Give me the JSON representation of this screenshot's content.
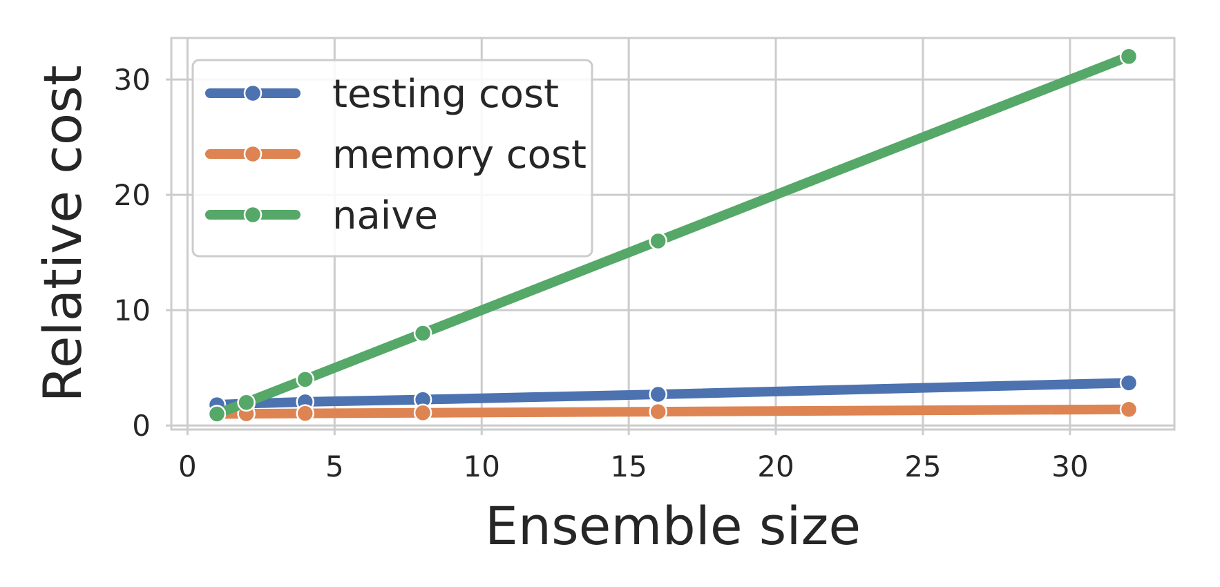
{
  "chart_data": {
    "type": "line",
    "xlabel": "Ensemble size",
    "ylabel": "Relative cost",
    "xlim": [
      -0.55,
      33.55
    ],
    "ylim": [
      -0.35,
      33.6
    ],
    "xticks": [
      0,
      5,
      10,
      15,
      20,
      25,
      30
    ],
    "yticks": [
      0,
      10,
      20,
      30
    ],
    "grid": true,
    "legend_position": "top-left",
    "x": [
      1,
      2,
      4,
      8,
      16,
      32
    ],
    "series": [
      {
        "name": "testing cost",
        "color": "#4c72b0",
        "values": [
          1.8,
          1.9,
          2.05,
          2.25,
          2.7,
          3.7
        ]
      },
      {
        "name": "memory cost",
        "color": "#dd8452",
        "values": [
          1.0,
          1.02,
          1.05,
          1.1,
          1.2,
          1.4
        ]
      },
      {
        "name": "naive",
        "color": "#55a868",
        "values": [
          1,
          2,
          4,
          8,
          16,
          32
        ]
      }
    ]
  }
}
